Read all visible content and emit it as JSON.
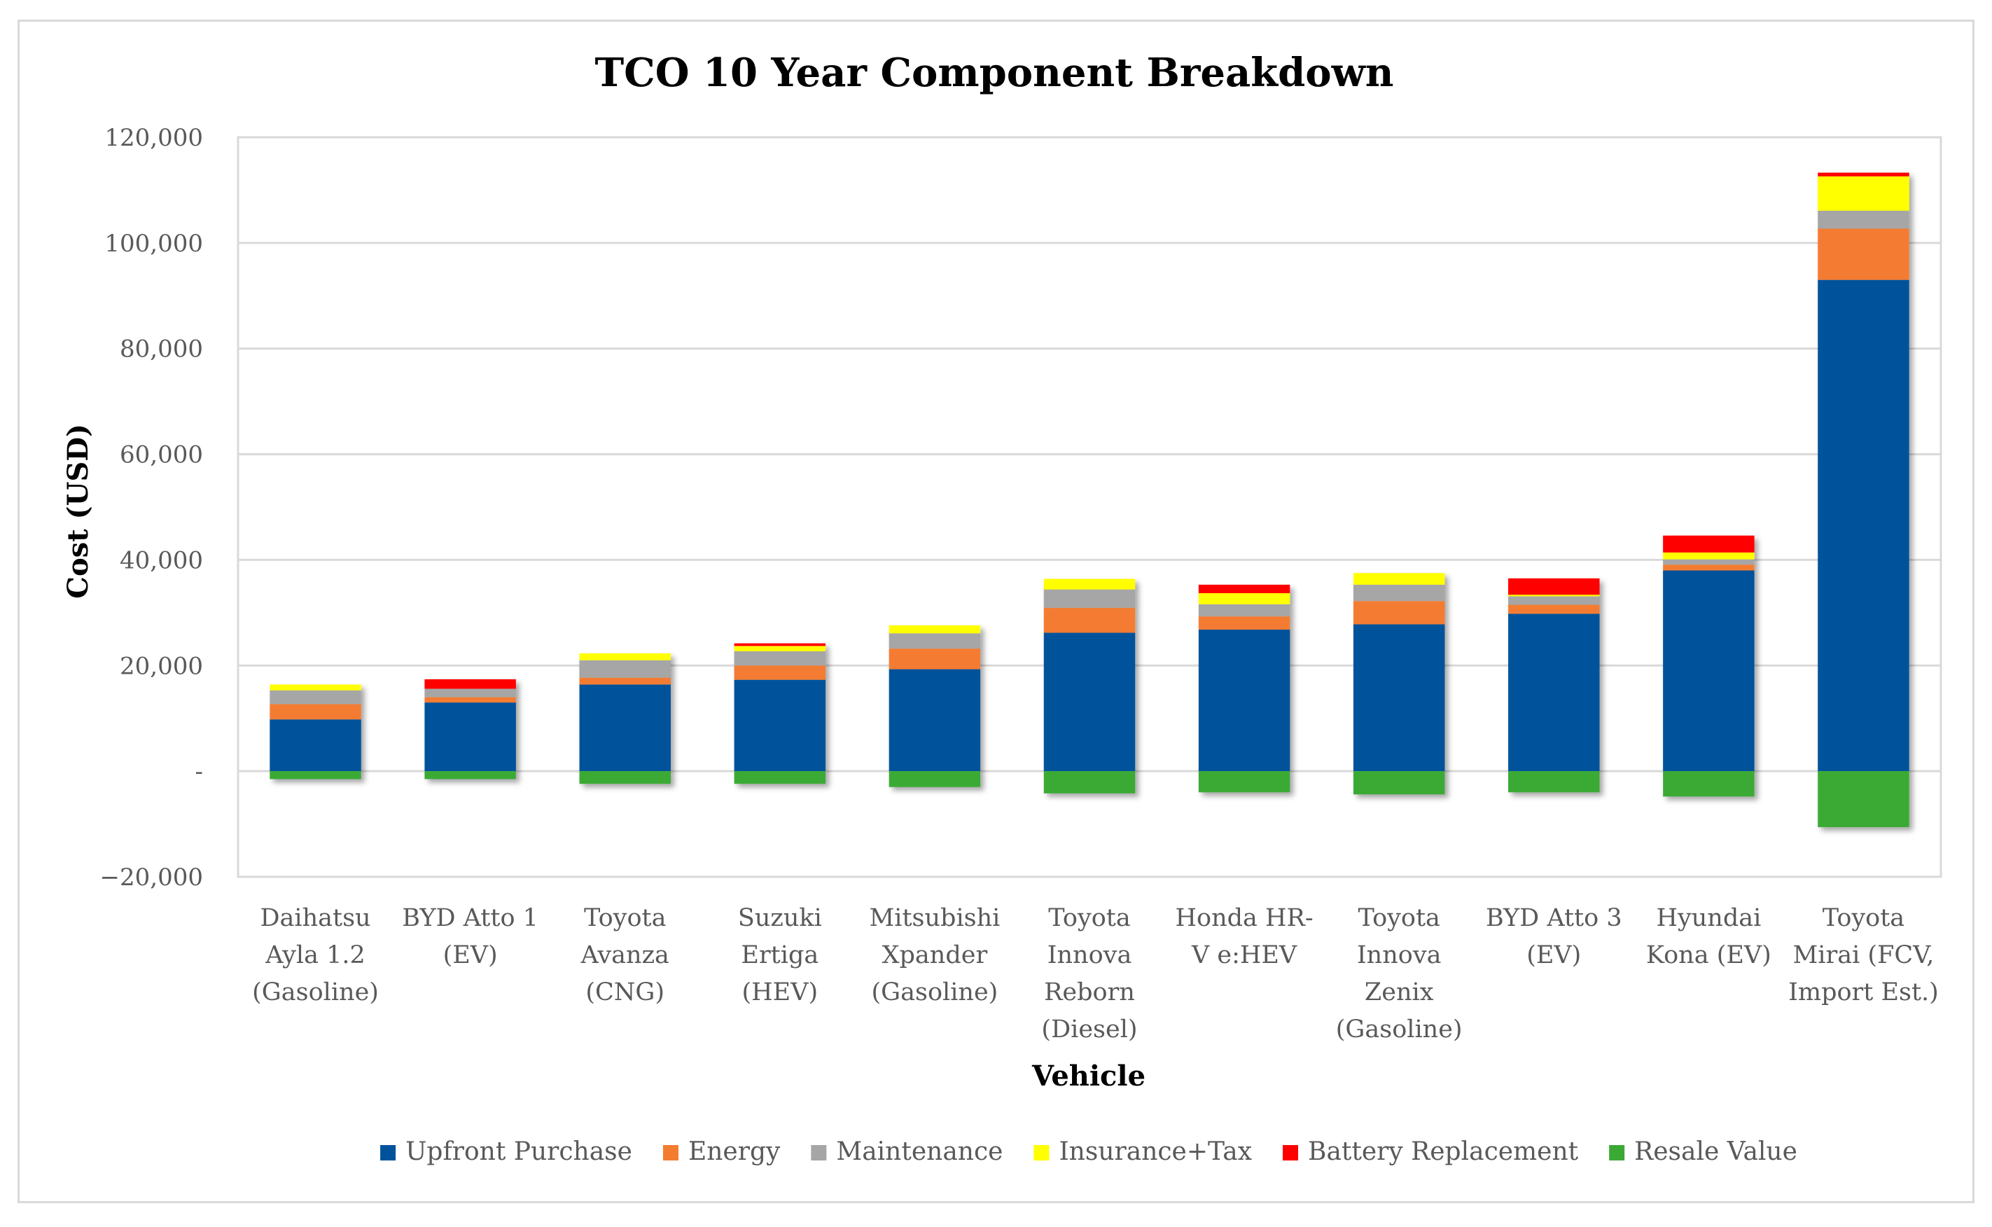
{
  "chart_data": {
    "type": "bar",
    "stacked": true,
    "title": "TCO 10 Year Component Breakdown",
    "xlabel": "Vehicle",
    "ylabel": "Cost (USD)",
    "ylim": [
      -20000,
      120000
    ],
    "yticks": [
      -20000,
      0,
      20000,
      40000,
      60000,
      80000,
      100000,
      120000
    ],
    "ytick_labels": [
      "−20,000",
      "-",
      "20,000",
      "40,000",
      "60,000",
      "80,000",
      "100,000",
      "120,000"
    ],
    "grid": true,
    "legend_position": "bottom",
    "categories": [
      [
        "Daihatsu",
        "Ayla 1.2",
        "(Gasoline)"
      ],
      [
        "BYD Atto 1",
        "(EV)"
      ],
      [
        "Toyota",
        "Avanza",
        "(CNG)"
      ],
      [
        "Suzuki",
        "Ertiga",
        "(HEV)"
      ],
      [
        "Mitsubishi",
        "Xpander",
        "(Gasoline)"
      ],
      [
        "Toyota",
        "Innova",
        "Reborn",
        "(Diesel)"
      ],
      [
        "Honda HR-",
        "V e:HEV"
      ],
      [
        "Toyota",
        "Innova",
        "Zenix",
        "(Gasoline)"
      ],
      [
        "BYD Atto 3",
        "(EV)"
      ],
      [
        "Hyundai",
        "Kona (EV)"
      ],
      [
        "Toyota",
        "Mirai (FCV,",
        "Import Est.)"
      ]
    ],
    "series": [
      {
        "name": "Upfront Purchase",
        "color": "#00529b",
        "values": [
          9800,
          13000,
          16400,
          17300,
          19300,
          26200,
          26800,
          27800,
          29800,
          38000,
          93000
        ]
      },
      {
        "name": "Energy",
        "color": "#f47c30",
        "values": [
          2900,
          1000,
          1300,
          2700,
          3900,
          4700,
          2500,
          4400,
          1700,
          1100,
          9700
        ]
      },
      {
        "name": "Maintenance",
        "color": "#a6a6a6",
        "values": [
          2600,
          1600,
          3300,
          2700,
          2900,
          3500,
          2300,
          3100,
          1600,
          1000,
          3400
        ]
      },
      {
        "name": "Insurance+Tax",
        "color": "#ffff00",
        "values": [
          1100,
          0,
          1300,
          1000,
          1500,
          2000,
          2100,
          2200,
          300,
          1300,
          6500
        ]
      },
      {
        "name": "Battery Replacement",
        "color": "#ff0000",
        "values": [
          0,
          1800,
          0,
          500,
          0,
          0,
          1600,
          0,
          3100,
          3200,
          700
        ]
      },
      {
        "name": "Resale Value",
        "color": "#3aaa35",
        "values": [
          -1500,
          -1500,
          -2400,
          -2400,
          -3000,
          -4200,
          -4000,
          -4400,
          -4000,
          -4800,
          -10600
        ]
      }
    ]
  }
}
